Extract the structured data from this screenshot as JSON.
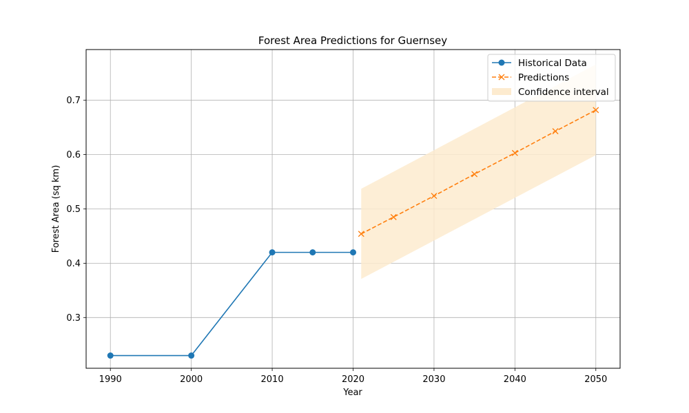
{
  "chart_data": {
    "type": "line",
    "title": "Forest Area Predictions for Guernsey",
    "xlabel": "Year",
    "ylabel": "Forest Area (sq km)",
    "xlim": [
      1987,
      2053
    ],
    "ylim": [
      0.2066,
      0.7934
    ],
    "x_ticks": [
      1990,
      2000,
      2010,
      2020,
      2030,
      2040,
      2050
    ],
    "y_ticks": [
      0.3,
      0.4,
      0.5,
      0.6,
      0.7
    ],
    "grid": true,
    "legend_position": "top-right",
    "series": [
      {
        "name": "Historical Data",
        "style": "solid",
        "marker": "circle",
        "color": "#1f77b4",
        "x": [
          1990,
          2000,
          2010,
          2015,
          2020
        ],
        "y": [
          0.23,
          0.23,
          0.42,
          0.42,
          0.42
        ]
      },
      {
        "name": "Predictions",
        "style": "dashed",
        "marker": "x",
        "color": "#ff7f0e",
        "x": [
          2021,
          2025,
          2030,
          2035,
          2040,
          2045,
          2050
        ],
        "y": [
          0.454,
          0.485,
          0.524,
          0.564,
          0.603,
          0.643,
          0.682
        ]
      }
    ],
    "band": {
      "name": "Confidence interval",
      "color": "#fdebcf",
      "x": [
        2021,
        2050
      ],
      "lower": [
        0.371,
        0.599
      ],
      "upper": [
        0.537,
        0.766
      ]
    }
  }
}
